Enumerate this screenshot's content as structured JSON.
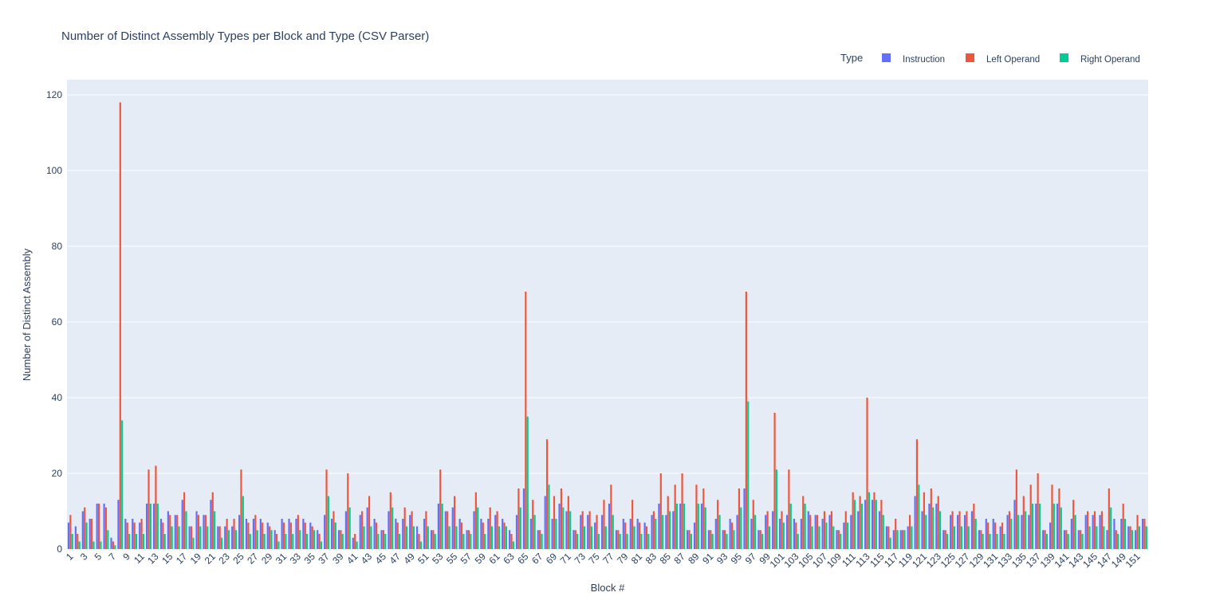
{
  "chart_data": {
    "type": "bar",
    "title": "Number of Distinct Assembly Types per Block and Type (CSV Parser)",
    "xlabel": "Block #",
    "ylabel": "Number of Distinct Assembly",
    "ylim": [
      0,
      124
    ],
    "yticks": [
      0,
      20,
      40,
      60,
      80,
      100,
      120
    ],
    "grid": true,
    "legend": {
      "title": "Type",
      "position": "top-right"
    },
    "categories_range": [
      1,
      152
    ],
    "series": [
      {
        "name": "Instruction",
        "color": "#636efa",
        "values": [
          7,
          6,
          10,
          8,
          12,
          12,
          3,
          13,
          8,
          8,
          7,
          12,
          12,
          8,
          10,
          9,
          13,
          6,
          10,
          9,
          13,
          6,
          6,
          6,
          9,
          8,
          8,
          8,
          7,
          5,
          8,
          8,
          8,
          8,
          7,
          5,
          9,
          8,
          5,
          10,
          3,
          9,
          11,
          8,
          5,
          10,
          8,
          8,
          9,
          6,
          8,
          5,
          12,
          10,
          11,
          8,
          5,
          10,
          8,
          8,
          9,
          8,
          5,
          9,
          16,
          8,
          5,
          14,
          8,
          12,
          10,
          5,
          9,
          9,
          7,
          9,
          12,
          5,
          8,
          8,
          8,
          7,
          9,
          12,
          9,
          10,
          12,
          5,
          7,
          12,
          5,
          8,
          5,
          8,
          9,
          16,
          8,
          5,
          9,
          10,
          8,
          9,
          8,
          8,
          10,
          9,
          8,
          9,
          5,
          7,
          9,
          10,
          13,
          13,
          10,
          6,
          5,
          5,
          6,
          14,
          10,
          12,
          12,
          5,
          9,
          9,
          9,
          10,
          5,
          8,
          8,
          6,
          9,
          13,
          9,
          9,
          12,
          5,
          7,
          12,
          5,
          8,
          5,
          9,
          9,
          9,
          5,
          8,
          8,
          6,
          5,
          8
        ]
      },
      {
        "name": "Left Operand",
        "color": "#ef553b",
        "values": [
          9,
          4,
          11,
          8,
          12,
          11,
          2,
          118,
          7,
          7,
          8,
          21,
          22,
          7,
          9,
          9,
          15,
          6,
          9,
          9,
          15,
          6,
          8,
          8,
          21,
          7,
          9,
          7,
          6,
          4,
          7,
          7,
          9,
          7,
          6,
          4,
          21,
          10,
          5,
          20,
          4,
          10,
          14,
          7,
          5,
          15,
          7,
          11,
          10,
          4,
          10,
          5,
          21,
          10,
          14,
          7,
          5,
          15,
          7,
          11,
          10,
          7,
          4,
          16,
          68,
          13,
          5,
          29,
          14,
          16,
          14,
          5,
          10,
          10,
          9,
          13,
          17,
          5,
          7,
          13,
          7,
          6,
          10,
          20,
          14,
          17,
          20,
          5,
          17,
          16,
          5,
          13,
          5,
          7,
          16,
          68,
          13,
          5,
          10,
          36,
          10,
          21,
          7,
          14,
          9,
          9,
          10,
          10,
          5,
          10,
          15,
          14,
          40,
          15,
          13,
          6,
          8,
          5,
          9,
          29,
          15,
          16,
          14,
          5,
          10,
          10,
          10,
          12,
          5,
          7,
          7,
          7,
          10,
          21,
          14,
          17,
          20,
          5,
          17,
          16,
          5,
          13,
          5,
          10,
          10,
          10,
          16,
          5,
          12,
          6,
          9,
          8
        ]
      },
      {
        "name": "Right Operand",
        "color": "#00cc96",
        "values": [
          4,
          2,
          7,
          2,
          2,
          5,
          1,
          34,
          4,
          4,
          4,
          12,
          12,
          4,
          6,
          6,
          10,
          3,
          6,
          6,
          10,
          3,
          5,
          5,
          14,
          4,
          5,
          4,
          5,
          2,
          4,
          4,
          5,
          4,
          5,
          2,
          14,
          7,
          4,
          11,
          2,
          6,
          6,
          4,
          4,
          11,
          4,
          6,
          6,
          2,
          6,
          4,
          12,
          6,
          6,
          4,
          4,
          11,
          4,
          6,
          6,
          6,
          2,
          11,
          35,
          9,
          4,
          17,
          8,
          11,
          10,
          4,
          6,
          6,
          4,
          6,
          9,
          4,
          4,
          6,
          4,
          4,
          8,
          9,
          10,
          12,
          12,
          4,
          12,
          11,
          4,
          9,
          4,
          5,
          11,
          39,
          9,
          4,
          6,
          21,
          7,
          12,
          4,
          12,
          6,
          6,
          7,
          6,
          4,
          7,
          13,
          12,
          15,
          13,
          9,
          3,
          5,
          5,
          6,
          17,
          9,
          11,
          10,
          4,
          6,
          6,
          6,
          8,
          4,
          4,
          4,
          4,
          8,
          9,
          10,
          12,
          12,
          4,
          12,
          11,
          4,
          9,
          4,
          6,
          6,
          6,
          11,
          4,
          8,
          5,
          6,
          6
        ]
      }
    ]
  }
}
